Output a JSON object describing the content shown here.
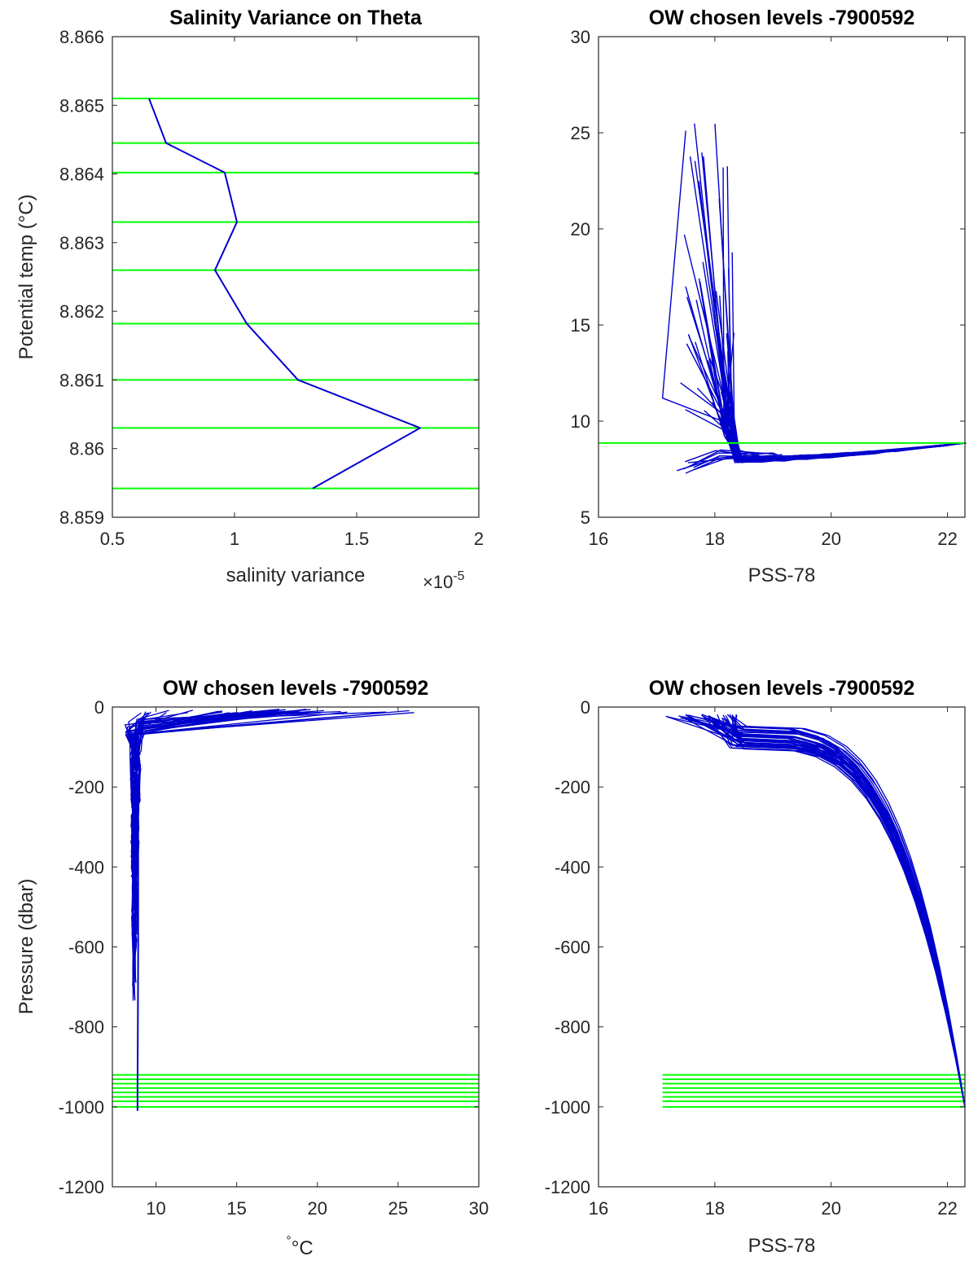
{
  "colors": {
    "profile": "#0000CD",
    "levels": "#00FF00",
    "axis": "#262626",
    "background": "#ffffff"
  },
  "chart_data": [
    {
      "type": "line",
      "title": "Salinity Variance on Theta",
      "xlabel": "salinity variance",
      "x_exponent_label": "×10",
      "x_exponent": "-5",
      "ylabel": "Potential temp (°C)",
      "xlim": [
        0.5,
        2
      ],
      "ylim": [
        8.859,
        8.866
      ],
      "xticks": [
        "0.5",
        "1",
        "1.5",
        "2"
      ],
      "yticks": [
        "8.859",
        "8.86",
        "8.861",
        "8.862",
        "8.863",
        "8.864",
        "8.865",
        "8.866"
      ],
      "series": [
        {
          "x": [
            0.65,
            0.72,
            0.96,
            1.01,
            0.92,
            1.05,
            1.26,
            1.76,
            1.32
          ],
          "y": [
            8.8651,
            8.86445,
            8.86402,
            8.8633,
            8.8626,
            8.86182,
            8.861,
            8.8603,
            8.85942
          ]
        }
      ],
      "hlines": [
        8.8651,
        8.86445,
        8.86402,
        8.8633,
        8.8626,
        8.86182,
        8.861,
        8.8603,
        8.85942
      ],
      "grid": false
    },
    {
      "type": "line",
      "title": "OW chosen levels -7900592",
      "xlabel": "PSS-78",
      "ylabel": "",
      "xlim": [
        16,
        22.3
      ],
      "ylim": [
        5,
        30
      ],
      "xticks": [
        "16",
        "18",
        "20",
        "22"
      ],
      "yticks": [
        "5",
        "10",
        "15",
        "20",
        "25",
        "30"
      ],
      "profiles": "theta-salinity profiles of float 7900592",
      "hlines": [
        8.862
      ],
      "grid": false
    },
    {
      "type": "line",
      "title": "OW chosen levels -7900592",
      "xlabel": "°C",
      "ylabel": "Pressure (dbar)",
      "xlim": [
        7.3,
        30
      ],
      "ylim": [
        -1200,
        0
      ],
      "xticks": [
        "10",
        "15",
        "20",
        "25",
        "30"
      ],
      "yticks": [
        "0",
        "-200",
        "-400",
        "-600",
        "-800",
        "-1000",
        "-1200"
      ],
      "hlines": [
        -920,
        -931,
        -942,
        -953,
        -964,
        -975,
        -986,
        -1000
      ],
      "grid": false
    },
    {
      "type": "line",
      "title": "OW chosen levels -7900592",
      "xlabel": "PSS-78",
      "ylabel": "",
      "xlim": [
        16,
        22.3
      ],
      "ylim": [
        -1200,
        0
      ],
      "xticks": [
        "16",
        "18",
        "20",
        "22"
      ],
      "yticks": [
        "0",
        "-200",
        "-400",
        "-600",
        "-800",
        "-1000",
        "-1200"
      ],
      "hlines": [
        -920,
        -931,
        -942,
        -953,
        -964,
        -975,
        -986,
        -1000
      ],
      "hline_xstart": 17.1,
      "grid": false
    }
  ]
}
